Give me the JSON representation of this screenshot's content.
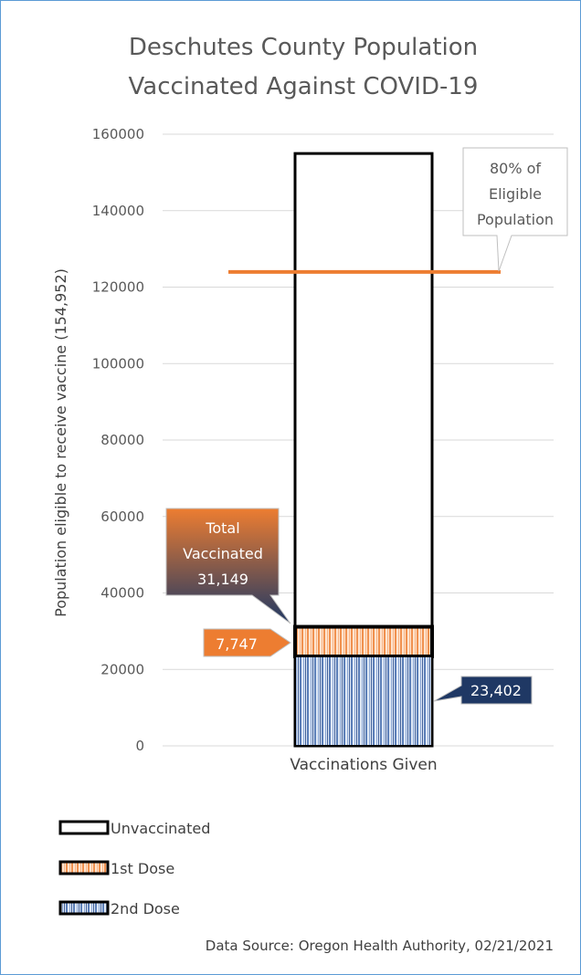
{
  "chart_data": {
    "type": "bar",
    "stacked": true,
    "title_lines": [
      "Deschutes County Population",
      "Vaccinated Against COVID-19"
    ],
    "ylabel": "Population eligible to receive vaccine (154,952)",
    "categories": [
      "Vaccinations Given"
    ],
    "ylim": [
      0,
      160000
    ],
    "yticks": [
      0,
      20000,
      40000,
      60000,
      80000,
      100000,
      120000,
      140000,
      160000
    ],
    "ytick_labels": [
      "0",
      "20000",
      "40000",
      "60000",
      "80000",
      "100000",
      "120000",
      "140000",
      "160000"
    ],
    "grid": true,
    "series": [
      {
        "name": "2nd Dose",
        "values": [
          23402
        ],
        "label": "23,402",
        "color": "#7f9ccf",
        "pattern": "vertical-stripes"
      },
      {
        "name": "1st Dose",
        "values": [
          7747
        ],
        "label": "7,747",
        "color": "#f4a46c",
        "pattern": "vertical-stripes"
      },
      {
        "name": "Unvaccinated",
        "values": [
          123803
        ],
        "color": "#ffffff",
        "pattern": "none"
      }
    ],
    "total_population": 154952,
    "threshold_line": {
      "value": 123962,
      "label_lines": [
        "80% of",
        "Eligible",
        "Population"
      ],
      "color": "#ed7d31"
    },
    "total_vaccinated": {
      "value": 31149,
      "label_lines": [
        "Total",
        "Vaccinated",
        "31,149"
      ]
    },
    "legend": {
      "placement": "bottom-left",
      "entries": [
        "Unvaccinated",
        "1st Dose",
        "2nd Dose"
      ]
    },
    "source": "Data Source: Oregon Health Authority, 02/21/2021"
  },
  "colors": {
    "orange": "#ed7d31",
    "navy": "#1f3864",
    "blue_stripe": "#7f9ccf",
    "orange_stripe": "#f4a46c",
    "gridline": "#d9d9d9"
  }
}
